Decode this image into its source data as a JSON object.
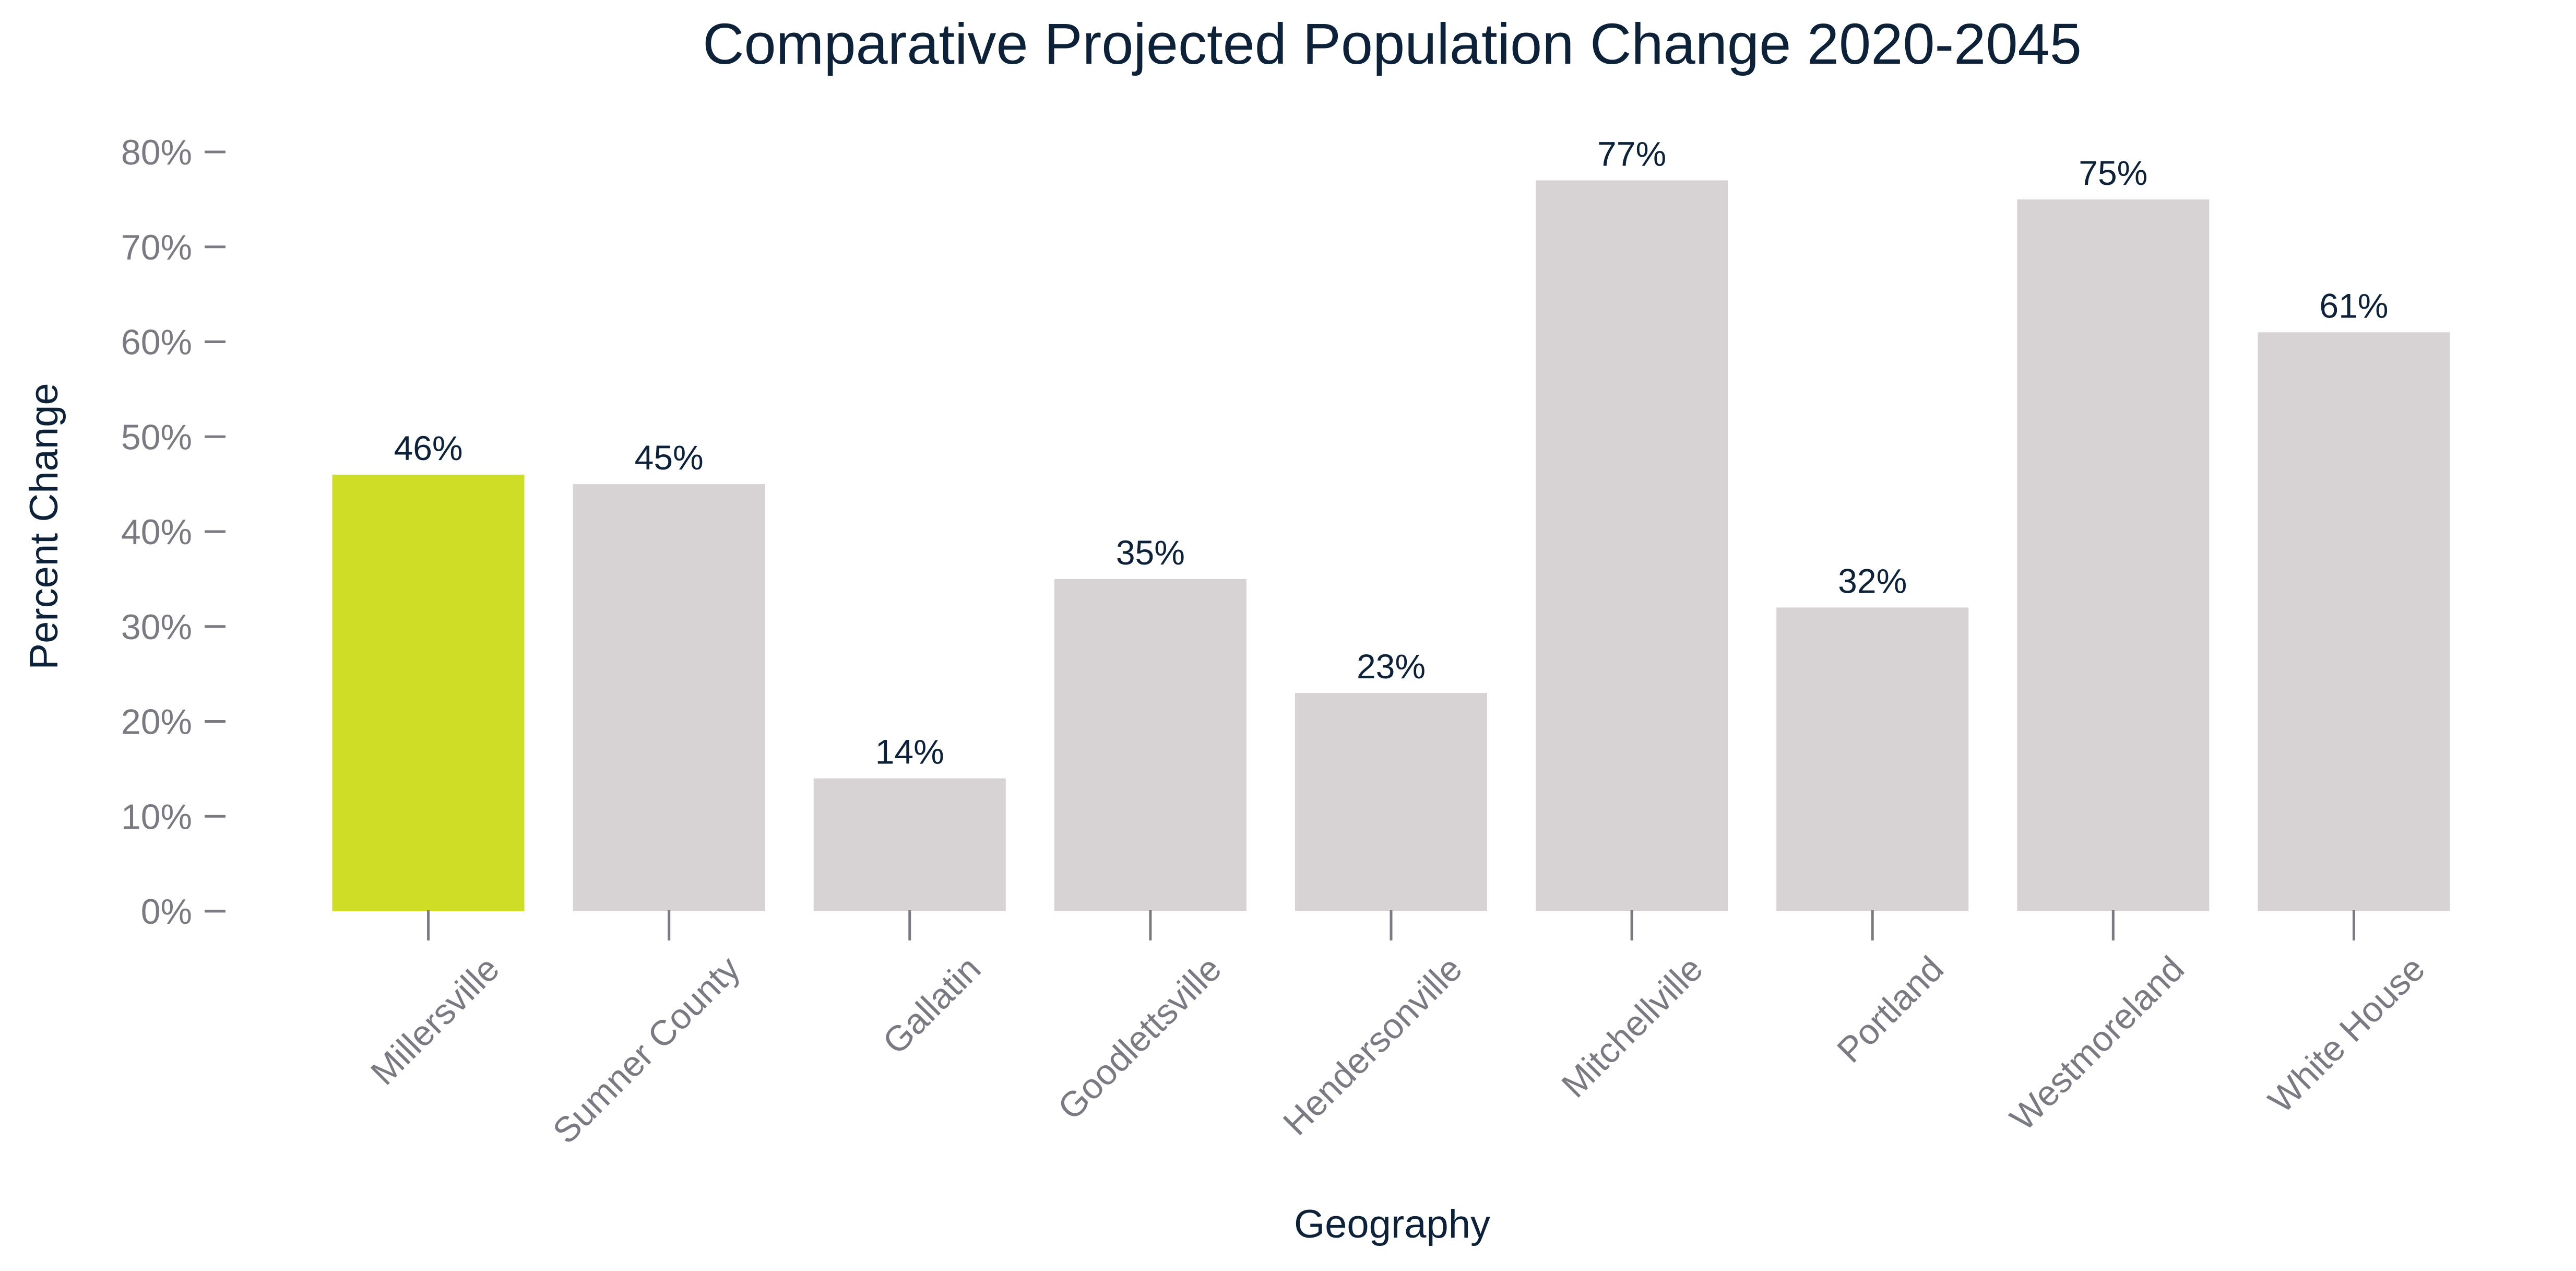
{
  "chart_data": {
    "type": "bar",
    "title": "Comparative Projected Population Change 2020-2045",
    "xlabel": "Geography",
    "ylabel": "Percent Change",
    "categories": [
      "Millersville",
      "Sumner County",
      "Gallatin",
      "Goodlettsville",
      "Hendersonville",
      "Mitchellville",
      "Portland",
      "Westmoreland",
      "White House"
    ],
    "values": [
      46,
      45,
      14,
      35,
      23,
      77,
      32,
      75,
      61
    ],
    "data_labels": [
      "46%",
      "45%",
      "14%",
      "35%",
      "23%",
      "77%",
      "32%",
      "75%",
      "61%"
    ],
    "y_ticks": [
      0,
      10,
      20,
      30,
      40,
      50,
      60,
      70,
      80
    ],
    "y_tick_labels": [
      "0%",
      "10%",
      "20%",
      "30%",
      "40%",
      "50%",
      "60%",
      "70%",
      "80%"
    ],
    "ylim": [
      0,
      80
    ],
    "grid": false,
    "legend": "none",
    "highlight_category": "Millersville",
    "colors": {
      "highlight": "#cfdd26",
      "bar": "#d7d2d4",
      "text_dark": "#0d2138",
      "text_tick": "#7a7a82",
      "tick_line": "#7a7a82"
    }
  }
}
